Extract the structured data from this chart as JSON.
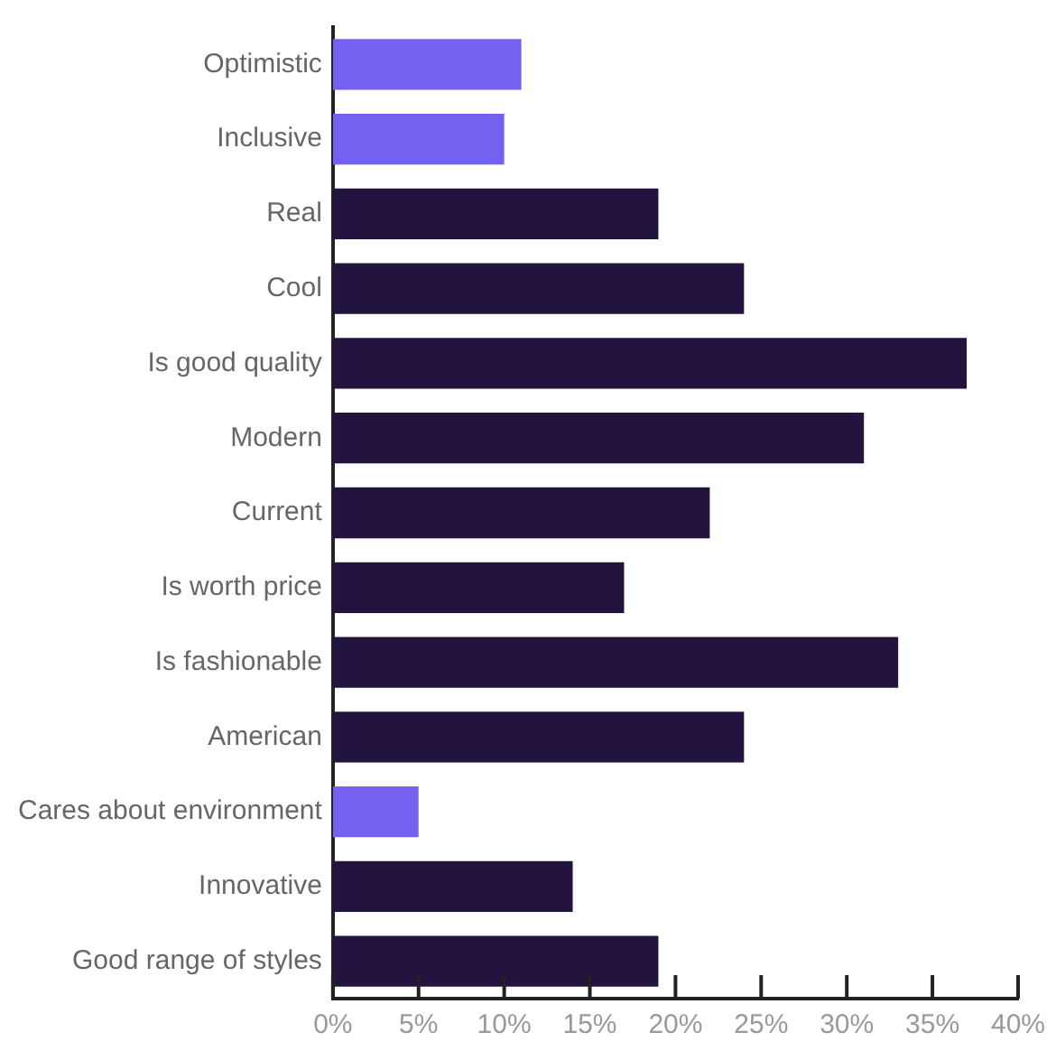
{
  "chart_data": {
    "type": "bar",
    "orientation": "horizontal",
    "categories": [
      "Optimistic",
      "Inclusive",
      "Real",
      "Cool",
      "Is good quality",
      "Modern",
      "Current",
      "Is worth price",
      "Is fashionable",
      "American",
      "Cares about environment",
      "Innovative",
      "Good range of styles"
    ],
    "values": [
      11,
      10,
      19,
      24,
      37,
      31,
      22,
      17,
      33,
      24,
      5,
      14,
      19
    ],
    "colors": [
      "#7561ef",
      "#7561ef",
      "#22143f",
      "#22143f",
      "#22143f",
      "#22143f",
      "#22143f",
      "#22143f",
      "#22143f",
      "#22143f",
      "#7561ef",
      "#22143f",
      "#22143f"
    ],
    "xlim": [
      0,
      40
    ],
    "xticks": [
      {
        "value": 0,
        "label": "0%"
      },
      {
        "value": 5,
        "label": "5%"
      },
      {
        "value": 10,
        "label": "10%"
      },
      {
        "value": 15,
        "label": "15%"
      },
      {
        "value": 20,
        "label": "20%"
      },
      {
        "value": 25,
        "label": "25%"
      },
      {
        "value": 30,
        "label": "30%"
      },
      {
        "value": 35,
        "label": "35%"
      },
      {
        "value": 40,
        "label": "40%"
      }
    ],
    "grid": false,
    "legend": false
  }
}
